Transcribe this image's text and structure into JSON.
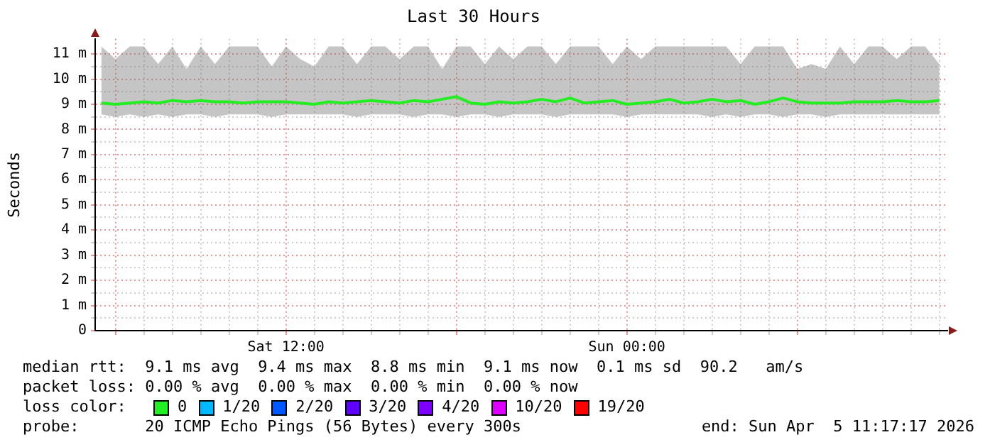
{
  "chart_data": {
    "type": "line",
    "title": "Last 30 Hours",
    "ylabel": "Seconds",
    "legend_title": "loss color:",
    "legend": "bottom",
    "grid": true,
    "x": [
      "2026-04-04T05:30",
      "2026-04-04T06:00",
      "2026-04-04T06:30",
      "2026-04-04T07:00",
      "2026-04-04T07:30",
      "2026-04-04T08:00",
      "2026-04-04T08:30",
      "2026-04-04T09:00",
      "2026-04-04T09:30",
      "2026-04-04T10:00",
      "2026-04-04T10:30",
      "2026-04-04T11:00",
      "2026-04-04T11:30",
      "2026-04-04T12:00",
      "2026-04-04T12:30",
      "2026-04-04T13:00",
      "2026-04-04T13:30",
      "2026-04-04T14:00",
      "2026-04-04T14:30",
      "2026-04-04T15:00",
      "2026-04-04T15:30",
      "2026-04-04T16:00",
      "2026-04-04T16:30",
      "2026-04-04T17:00",
      "2026-04-04T17:30",
      "2026-04-04T18:00",
      "2026-04-04T18:30",
      "2026-04-04T19:00",
      "2026-04-04T19:30",
      "2026-04-04T20:00",
      "2026-04-04T20:30",
      "2026-04-04T21:00",
      "2026-04-04T21:30",
      "2026-04-04T22:00",
      "2026-04-04T22:30",
      "2026-04-04T23:00",
      "2026-04-04T23:30",
      "2026-04-05T00:00",
      "2026-04-05T00:30",
      "2026-04-05T01:00",
      "2026-04-05T01:30",
      "2026-04-05T02:00",
      "2026-04-05T02:30",
      "2026-04-05T03:00",
      "2026-04-05T03:30",
      "2026-04-05T04:00",
      "2026-04-05T04:30",
      "2026-04-05T05:00",
      "2026-04-05T05:30",
      "2026-04-05T06:00",
      "2026-04-05T06:30",
      "2026-04-05T07:00",
      "2026-04-05T07:30",
      "2026-04-05T08:00",
      "2026-04-05T08:30",
      "2026-04-05T09:00",
      "2026-04-05T09:30",
      "2026-04-05T10:00",
      "2026-04-05T10:30",
      "2026-04-05T11:00"
    ],
    "xlim": [
      "2026-04-04T05:17",
      "2026-04-05T11:17"
    ],
    "xticks": [
      {
        "value": "2026-04-04T06:00",
        "label": null
      },
      {
        "value": "2026-04-04T07:00",
        "label": null
      },
      {
        "value": "2026-04-04T08:00",
        "label": null
      },
      {
        "value": "2026-04-04T09:00",
        "label": null
      },
      {
        "value": "2026-04-04T10:00",
        "label": null
      },
      {
        "value": "2026-04-04T11:00",
        "label": null
      },
      {
        "value": "2026-04-04T12:00",
        "label": "Sat 12:00"
      },
      {
        "value": "2026-04-04T13:00",
        "label": null
      },
      {
        "value": "2026-04-04T14:00",
        "label": null
      },
      {
        "value": "2026-04-04T15:00",
        "label": null
      },
      {
        "value": "2026-04-04T16:00",
        "label": null
      },
      {
        "value": "2026-04-04T17:00",
        "label": null
      },
      {
        "value": "2026-04-04T18:00",
        "label": null
      },
      {
        "value": "2026-04-04T19:00",
        "label": null
      },
      {
        "value": "2026-04-04T20:00",
        "label": null
      },
      {
        "value": "2026-04-04T21:00",
        "label": null
      },
      {
        "value": "2026-04-04T22:00",
        "label": null
      },
      {
        "value": "2026-04-04T23:00",
        "label": null
      },
      {
        "value": "2026-04-05T00:00",
        "label": "Sun 00:00"
      },
      {
        "value": "2026-04-05T01:00",
        "label": null
      },
      {
        "value": "2026-04-05T02:00",
        "label": null
      },
      {
        "value": "2026-04-05T03:00",
        "label": null
      },
      {
        "value": "2026-04-05T04:00",
        "label": null
      },
      {
        "value": "2026-04-05T05:00",
        "label": null
      },
      {
        "value": "2026-04-05T06:00",
        "label": null
      },
      {
        "value": "2026-04-05T07:00",
        "label": null
      },
      {
        "value": "2026-04-05T08:00",
        "label": null
      },
      {
        "value": "2026-04-05T09:00",
        "label": null
      },
      {
        "value": "2026-04-05T10:00",
        "label": null
      },
      {
        "value": "2026-04-05T11:00",
        "label": null
      }
    ],
    "ylim": [
      0,
      11.6
    ],
    "yticks": [
      0,
      {
        "value": 0.5,
        "label": null
      },
      {
        "value": 1,
        "label": "1 m"
      },
      {
        "value": 1.5,
        "label": null
      },
      {
        "value": 2,
        "label": "2 m"
      },
      {
        "value": 2.5,
        "label": null
      },
      {
        "value": 3,
        "label": "3 m"
      },
      {
        "value": 3.5,
        "label": null
      },
      {
        "value": 4,
        "label": "4 m"
      },
      {
        "value": 4.5,
        "label": null
      },
      {
        "value": 5,
        "label": "5 m"
      },
      {
        "value": 5.5,
        "label": null
      },
      {
        "value": 6,
        "label": "6 m"
      },
      {
        "value": 6.5,
        "label": null
      },
      {
        "value": 7,
        "label": "7 m"
      },
      {
        "value": 7.5,
        "label": null
      },
      {
        "value": 8,
        "label": "8 m"
      },
      {
        "value": 8.5,
        "label": null
      },
      {
        "value": 9,
        "label": "9 m"
      },
      {
        "value": 9.5,
        "label": null
      },
      {
        "value": 10,
        "label": "10 m"
      },
      {
        "value": 10.5,
        "label": null
      },
      {
        "value": 11,
        "label": "11 m"
      }
    ],
    "series": [
      {
        "name": "0",
        "color": "#22ee22",
        "values": [
          9.05,
          9.0,
          9.05,
          9.1,
          9.05,
          9.15,
          9.1,
          9.15,
          9.1,
          9.1,
          9.05,
          9.1,
          9.1,
          9.1,
          9.05,
          9.0,
          9.1,
          9.05,
          9.1,
          9.15,
          9.1,
          9.05,
          9.15,
          9.1,
          9.2,
          9.3,
          9.05,
          9.0,
          9.1,
          9.05,
          9.1,
          9.2,
          9.1,
          9.25,
          9.05,
          9.1,
          9.15,
          9.0,
          9.05,
          9.1,
          9.2,
          9.05,
          9.1,
          9.2,
          9.1,
          9.15,
          9.0,
          9.1,
          9.25,
          9.1,
          9.05,
          9.05,
          9.05,
          9.1,
          9.1,
          9.1,
          9.15,
          9.1,
          9.1,
          9.15
        ],
        "lower": [
          8.6,
          8.5,
          8.6,
          8.5,
          8.6,
          8.5,
          8.6,
          8.6,
          8.5,
          8.6,
          8.6,
          8.6,
          8.5,
          8.6,
          8.6,
          8.6,
          8.6,
          8.6,
          8.5,
          8.6,
          8.6,
          8.6,
          8.5,
          8.6,
          8.6,
          8.5,
          8.6,
          8.6,
          8.5,
          8.6,
          8.6,
          8.6,
          8.5,
          8.6,
          8.6,
          8.6,
          8.6,
          8.5,
          8.6,
          8.6,
          8.6,
          8.6,
          8.6,
          8.5,
          8.6,
          8.5,
          8.6,
          8.6,
          8.5,
          8.6,
          8.6,
          8.5,
          8.6,
          8.6,
          8.6,
          8.6,
          8.6,
          8.6,
          8.6,
          8.6
        ],
        "upper": [
          11.3,
          10.8,
          11.3,
          11.3,
          10.6,
          11.3,
          10.4,
          11.3,
          10.6,
          11.3,
          11.3,
          11.3,
          10.5,
          11.3,
          10.8,
          10.5,
          11.3,
          11.3,
          10.6,
          11.3,
          11.3,
          10.8,
          11.3,
          11.3,
          10.4,
          11.3,
          11.3,
          10.6,
          11.3,
          10.8,
          11.3,
          11.3,
          10.6,
          11.3,
          11.3,
          11.3,
          10.6,
          11.3,
          10.8,
          11.3,
          11.3,
          11.3,
          11.3,
          11.3,
          11.3,
          10.6,
          11.3,
          11.3,
          11.3,
          10.4,
          10.6,
          10.4,
          11.3,
          10.6,
          11.3,
          11.3,
          10.8,
          11.3,
          11.3,
          10.6
        ]
      },
      {
        "name": "1/20",
        "color": "#00b8ff",
        "values": [
          null,
          null,
          null,
          null,
          null,
          null,
          null,
          null,
          null,
          null,
          null,
          null,
          null,
          null,
          null,
          null,
          null,
          null,
          null,
          null,
          null,
          null,
          null,
          null,
          null,
          null,
          null,
          null,
          null,
          null,
          null,
          null,
          null,
          null,
          null,
          null,
          null,
          null,
          null,
          null,
          null,
          null,
          null,
          null,
          null,
          null,
          null,
          null,
          null,
          null,
          null,
          null,
          null,
          null,
          null,
          null,
          null,
          null,
          null,
          null
        ]
      },
      {
        "name": "2/20",
        "color": "#0059ff",
        "values": [
          null,
          null,
          null,
          null,
          null,
          null,
          null,
          null,
          null,
          null,
          null,
          null,
          null,
          null,
          null,
          null,
          null,
          null,
          null,
          null,
          null,
          null,
          null,
          null,
          null,
          null,
          null,
          null,
          null,
          null,
          null,
          null,
          null,
          null,
          null,
          null,
          null,
          null,
          null,
          null,
          null,
          null,
          null,
          null,
          null,
          null,
          null,
          null,
          null,
          null,
          null,
          null,
          null,
          null,
          null,
          null,
          null,
          null,
          null,
          null
        ]
      },
      {
        "name": "3/20",
        "color": "#5e00ff",
        "values": [
          null,
          null,
          null,
          null,
          null,
          null,
          null,
          null,
          null,
          null,
          null,
          null,
          null,
          null,
          null,
          null,
          null,
          null,
          null,
          null,
          null,
          null,
          null,
          null,
          null,
          null,
          null,
          null,
          null,
          null,
          null,
          null,
          null,
          null,
          null,
          null,
          null,
          null,
          null,
          null,
          null,
          null,
          null,
          null,
          null,
          null,
          null,
          null,
          null,
          null,
          null,
          null,
          null,
          null,
          null,
          null,
          null,
          null,
          null,
          null
        ]
      },
      {
        "name": "4/20",
        "color": "#7e00ff",
        "values": [
          null,
          null,
          null,
          null,
          null,
          null,
          null,
          null,
          null,
          null,
          null,
          null,
          null,
          null,
          null,
          null,
          null,
          null,
          null,
          null,
          null,
          null,
          null,
          null,
          null,
          null,
          null,
          null,
          null,
          null,
          null,
          null,
          null,
          null,
          null,
          null,
          null,
          null,
          null,
          null,
          null,
          null,
          null,
          null,
          null,
          null,
          null,
          null,
          null,
          null,
          null,
          null,
          null,
          null,
          null,
          null,
          null,
          null,
          null,
          null
        ]
      },
      {
        "name": "10/20",
        "color": "#dd00ff",
        "values": [
          null,
          null,
          null,
          null,
          null,
          null,
          null,
          null,
          null,
          null,
          null,
          null,
          null,
          null,
          null,
          null,
          null,
          null,
          null,
          null,
          null,
          null,
          null,
          null,
          null,
          null,
          null,
          null,
          null,
          null,
          null,
          null,
          null,
          null,
          null,
          null,
          null,
          null,
          null,
          null,
          null,
          null,
          null,
          null,
          null,
          null,
          null,
          null,
          null,
          null,
          null,
          null,
          null,
          null,
          null,
          null,
          null,
          null,
          null,
          null
        ]
      },
      {
        "name": "19/20",
        "color": "#ff0000",
        "values": [
          null,
          null,
          null,
          null,
          null,
          null,
          null,
          null,
          null,
          null,
          null,
          null,
          null,
          null,
          null,
          null,
          null,
          null,
          null,
          null,
          null,
          null,
          null,
          null,
          null,
          null,
          null,
          null,
          null,
          null,
          null,
          null,
          null,
          null,
          null,
          null,
          null,
          null,
          null,
          null,
          null,
          null,
          null,
          null,
          null,
          null,
          null,
          null,
          null,
          null,
          null,
          null,
          null,
          null,
          null,
          null,
          null,
          null,
          null,
          null
        ]
      }
    ],
    "annotations": [
      "median rtt:  9.1 ms avg  9.4 ms max  8.8 ms min  9.1 ms now  0.1 ms sd  90.2   am/s",
      "packet loss: 0.00 % avg  0.00 % max  0.00 % min  0.00 % now",
      "probe:       20 ICMP Echo Pings (56 Bytes) every 300s",
      "end: Sun Apr  5 11:17:17 2026"
    ]
  }
}
